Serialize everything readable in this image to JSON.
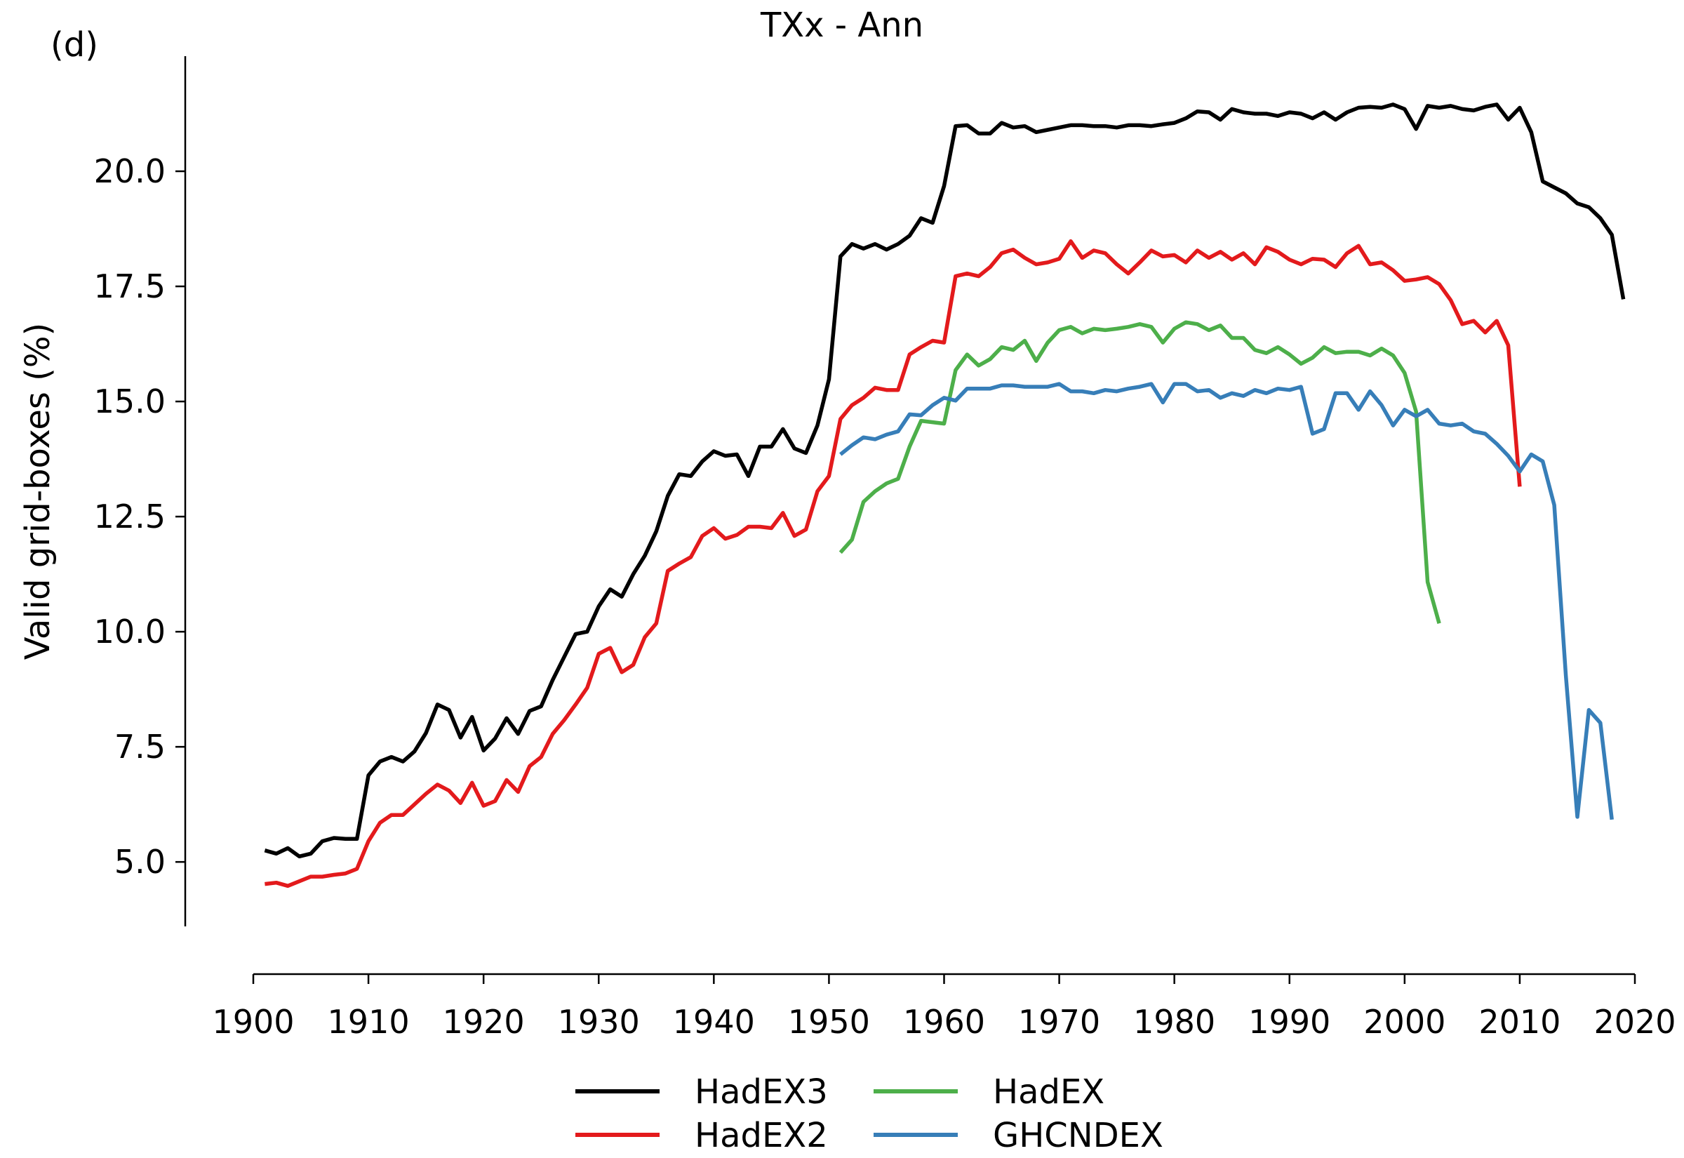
{
  "panel_label": "(d)",
  "chart_data": {
    "type": "line",
    "title": "TXx - Ann",
    "xlabel": "",
    "ylabel": "Valid grid-boxes (%)",
    "xlim": [
      1900,
      2020
    ],
    "ylim": [
      3.6,
      22.5
    ],
    "xticks": [
      1900,
      1910,
      1920,
      1930,
      1940,
      1950,
      1960,
      1970,
      1980,
      1990,
      2000,
      2010,
      2020
    ],
    "yticks": [
      5.0,
      7.5,
      10.0,
      12.5,
      15.0,
      17.5,
      20.0
    ],
    "ytick_labels": [
      "5.0",
      "7.5",
      "10.0",
      "12.5",
      "15.0",
      "17.5",
      "20.0"
    ],
    "grid": false,
    "legend_position": "bottom",
    "series": [
      {
        "name": "HadEX3",
        "color": "#000000",
        "start_year": 1901,
        "values": [
          5.25,
          5.18,
          5.3,
          5.12,
          5.18,
          5.45,
          5.52,
          5.5,
          5.5,
          6.88,
          7.18,
          7.28,
          7.18,
          7.4,
          7.8,
          8.42,
          8.3,
          7.7,
          8.15,
          7.42,
          7.68,
          8.12,
          7.78,
          8.28,
          8.38,
          8.95,
          9.45,
          9.95,
          10.0,
          10.55,
          10.92,
          10.76,
          11.25,
          11.65,
          12.18,
          12.95,
          13.42,
          13.38,
          13.7,
          13.92,
          13.82,
          13.85,
          13.38,
          14.02,
          14.02,
          14.4,
          13.98,
          13.88,
          14.48,
          15.48,
          18.15,
          18.42,
          18.32,
          18.42,
          18.3,
          18.42,
          18.6,
          18.98,
          18.88,
          19.68,
          20.98,
          21.0,
          20.82,
          20.82,
          21.05,
          20.95,
          20.98,
          20.85,
          20.9,
          20.95,
          21.0,
          21.0,
          20.98,
          20.98,
          20.95,
          21.0,
          21.0,
          20.98,
          21.02,
          21.05,
          21.15,
          21.3,
          21.28,
          21.12,
          21.35,
          21.28,
          21.25,
          21.25,
          21.2,
          21.28,
          21.25,
          21.15,
          21.28,
          21.12,
          21.28,
          21.38,
          21.4,
          21.38,
          21.45,
          21.35,
          20.92,
          21.42,
          21.38,
          21.42,
          21.35,
          21.32,
          21.4,
          21.45,
          21.12,
          21.38,
          20.85,
          19.78,
          19.65,
          19.52,
          19.3,
          19.22,
          18.98,
          18.62,
          17.22
        ]
      },
      {
        "name": "HadEX2",
        "color": "#e31a1c",
        "start_year": 1901,
        "values": [
          4.52,
          4.55,
          4.48,
          4.58,
          4.68,
          4.68,
          4.72,
          4.75,
          4.85,
          5.45,
          5.85,
          6.02,
          6.02,
          6.25,
          6.48,
          6.68,
          6.55,
          6.28,
          6.72,
          6.22,
          6.32,
          6.78,
          6.52,
          7.08,
          7.28,
          7.78,
          8.08,
          8.42,
          8.78,
          9.52,
          9.65,
          9.12,
          9.28,
          9.88,
          10.18,
          11.32,
          11.48,
          11.62,
          12.08,
          12.25,
          12.02,
          12.1,
          12.28,
          12.28,
          12.25,
          12.58,
          12.08,
          12.22,
          13.05,
          13.38,
          14.62,
          14.92,
          15.08,
          15.3,
          15.25,
          15.25,
          16.02,
          16.18,
          16.32,
          16.28,
          17.72,
          17.78,
          17.72,
          17.92,
          18.22,
          18.3,
          18.12,
          17.98,
          18.02,
          18.1,
          18.48,
          18.12,
          18.28,
          18.22,
          17.98,
          17.78,
          18.02,
          18.28,
          18.15,
          18.18,
          18.02,
          18.28,
          18.12,
          18.25,
          18.08,
          18.22,
          17.98,
          18.35,
          18.25,
          18.08,
          17.98,
          18.1,
          18.08,
          17.92,
          18.22,
          18.38,
          17.98,
          18.02,
          17.85,
          17.62,
          17.65,
          17.7,
          17.55,
          17.2,
          16.68,
          16.75,
          16.5,
          16.75,
          16.22,
          13.15
        ]
      },
      {
        "name": "HadEX",
        "color": "#4daf4a",
        "start_year": 1951,
        "values": [
          11.72,
          12.0,
          12.82,
          13.05,
          13.22,
          13.32,
          14.02,
          14.58,
          14.55,
          14.52,
          15.68,
          16.02,
          15.78,
          15.92,
          16.18,
          16.12,
          16.32,
          15.88,
          16.28,
          16.55,
          16.62,
          16.48,
          16.58,
          16.55,
          16.58,
          16.62,
          16.68,
          16.62,
          16.28,
          16.58,
          16.72,
          16.68,
          16.55,
          16.65,
          16.38,
          16.38,
          16.12,
          16.05,
          16.18,
          16.02,
          15.82,
          15.95,
          16.18,
          16.05,
          16.08,
          16.08,
          16.0,
          16.15,
          16.0,
          15.62,
          14.78,
          11.08,
          10.18
        ]
      },
      {
        "name": "GHCNDEX",
        "color": "#377eb8",
        "start_year": 1951,
        "values": [
          13.85,
          14.05,
          14.22,
          14.18,
          14.28,
          14.35,
          14.72,
          14.7,
          14.92,
          15.08,
          15.02,
          15.28,
          15.28,
          15.28,
          15.35,
          15.35,
          15.32,
          15.32,
          15.32,
          15.38,
          15.22,
          15.22,
          15.18,
          15.25,
          15.22,
          15.28,
          15.32,
          15.38,
          14.98,
          15.38,
          15.38,
          15.22,
          15.25,
          15.08,
          15.18,
          15.12,
          15.25,
          15.18,
          15.28,
          15.25,
          15.32,
          14.3,
          14.4,
          15.18,
          15.18,
          14.82,
          15.22,
          14.92,
          14.48,
          14.82,
          14.68,
          14.82,
          14.52,
          14.48,
          14.52,
          14.35,
          14.3,
          14.08,
          13.82,
          13.48,
          13.85,
          13.7,
          12.75,
          9.05,
          5.98,
          8.3,
          8.02,
          5.92
        ]
      }
    ],
    "legend": [
      {
        "name": "HadEX3",
        "color": "#000000"
      },
      {
        "name": "HadEX2",
        "color": "#e31a1c"
      },
      {
        "name": "HadEX",
        "color": "#4daf4a"
      },
      {
        "name": "GHCNDEX",
        "color": "#377eb8"
      }
    ]
  }
}
